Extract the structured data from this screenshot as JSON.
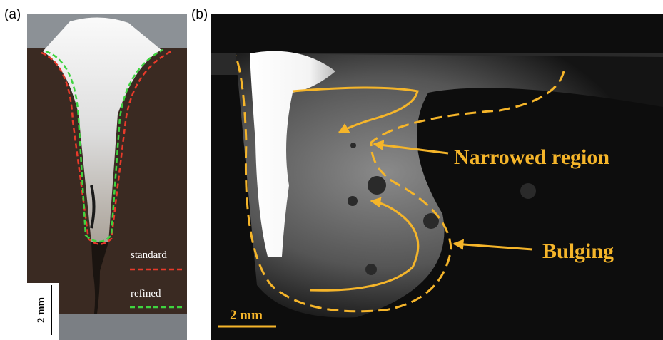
{
  "panels": [
    {
      "label": "(a)",
      "legend": [
        "standard",
        "refined"
      ],
      "scale_bar": "2 mm"
    },
    {
      "label": "(b)",
      "scale_bar": "2 mm",
      "annotations": [
        "Narrowed region",
        "Bulging"
      ]
    }
  ]
}
